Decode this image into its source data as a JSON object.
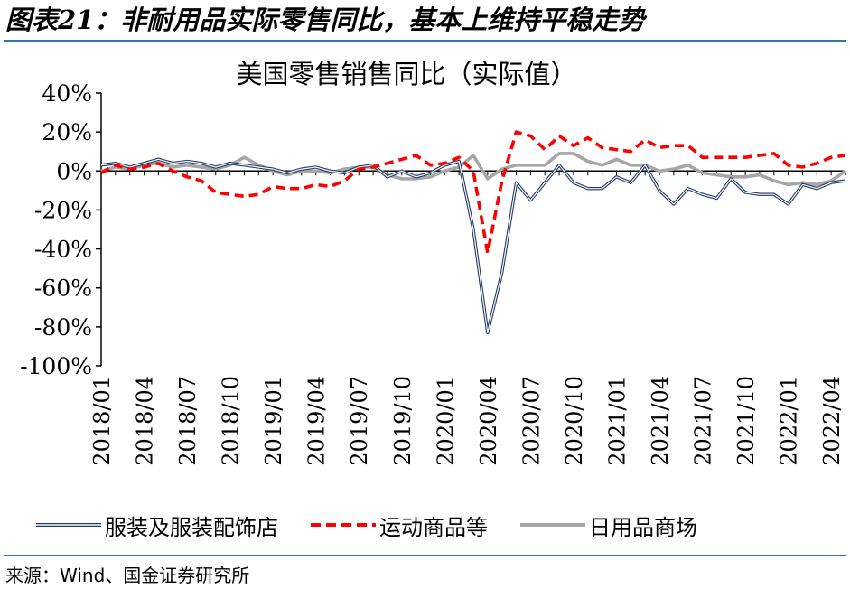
{
  "figure": {
    "title": "图表21：非耐用品实际零售同比，基本上维持平稳走势",
    "source": "来源：Wind、国金证券研究所"
  },
  "chart_data": {
    "type": "line",
    "title": "美国零售销售同比（实际值）",
    "xlabel": "",
    "ylabel": "",
    "ylim": [
      -100,
      40
    ],
    "yticks": [
      "40%",
      "20%",
      "0%",
      "-20%",
      "-40%",
      "-60%",
      "-80%",
      "-100%"
    ],
    "ytick_values": [
      40,
      20,
      0,
      -20,
      -40,
      -60,
      -80,
      -100
    ],
    "xticks": [
      "2018/01",
      "2018/04",
      "2018/07",
      "2018/10",
      "2019/01",
      "2019/04",
      "2019/07",
      "2019/10",
      "2020/01",
      "2020/04",
      "2020/07",
      "2020/10",
      "2021/01",
      "2021/04",
      "2021/07",
      "2021/10",
      "2022/01",
      "2022/04"
    ],
    "x": [
      "2018/01",
      "2018/02",
      "2018/03",
      "2018/04",
      "2018/05",
      "2018/06",
      "2018/07",
      "2018/08",
      "2018/09",
      "2018/10",
      "2018/11",
      "2018/12",
      "2019/01",
      "2019/02",
      "2019/03",
      "2019/04",
      "2019/05",
      "2019/06",
      "2019/07",
      "2019/08",
      "2019/09",
      "2019/10",
      "2019/11",
      "2019/12",
      "2020/01",
      "2020/02",
      "2020/03",
      "2020/04",
      "2020/05",
      "2020/06",
      "2020/07",
      "2020/08",
      "2020/09",
      "2020/10",
      "2020/11",
      "2020/12",
      "2021/01",
      "2021/02",
      "2021/03",
      "2021/04",
      "2021/05",
      "2021/06",
      "2021/07",
      "2021/08",
      "2021/09",
      "2021/10",
      "2021/11",
      "2021/12",
      "2022/01",
      "2022/02",
      "2022/03",
      "2022/04",
      "2022/05"
    ],
    "grid": false,
    "legend_position": "bottom",
    "series": [
      {
        "name": "服装及服装配饰店",
        "color": "#1f3864",
        "style": "solid-outline",
        "values": [
          3,
          4,
          2,
          4,
          6,
          4,
          5,
          4,
          2,
          4,
          3,
          2,
          1,
          -1,
          1,
          2,
          0,
          -1,
          2,
          3,
          -3,
          0,
          -3,
          -1,
          3,
          5,
          -30,
          -83,
          -52,
          -6,
          -15,
          -6,
          3,
          -6,
          -9,
          -9,
          -3,
          -6,
          3,
          -10,
          -17,
          -9,
          -12,
          -14,
          -4,
          -11,
          -12,
          -12,
          -17,
          -7,
          -9,
          -6,
          -5
        ]
      },
      {
        "name": "运动商品等",
        "color": "#ff0000",
        "style": "dashed",
        "values": [
          -1,
          3,
          1,
          2,
          4,
          0,
          -3,
          -5,
          -11,
          -12,
          -13,
          -12,
          -8,
          -9,
          -9,
          -7,
          -8,
          -5,
          1,
          2,
          4,
          6,
          8,
          3,
          4,
          7,
          0,
          -42,
          -5,
          20,
          18,
          11,
          18,
          13,
          17,
          12,
          11,
          10,
          16,
          12,
          13,
          13,
          7,
          7,
          7,
          7,
          8,
          9,
          3,
          2,
          4,
          7,
          8
        ]
      },
      {
        "name": "日用品商场",
        "color": "#a6a6a6",
        "style": "solid-thick",
        "values": [
          0,
          2,
          1,
          3,
          4,
          2,
          3,
          2,
          1,
          3,
          7,
          3,
          0,
          -2,
          0,
          0,
          -1,
          1,
          2,
          2,
          -2,
          -4,
          -4,
          -3,
          0,
          2,
          8,
          -4,
          1,
          3,
          3,
          3,
          9,
          9,
          5,
          3,
          6,
          3,
          3,
          0,
          1,
          3,
          -1,
          -2,
          -3,
          -3,
          -2,
          -5,
          -7,
          -6,
          -7,
          -5,
          0
        ]
      }
    ]
  }
}
